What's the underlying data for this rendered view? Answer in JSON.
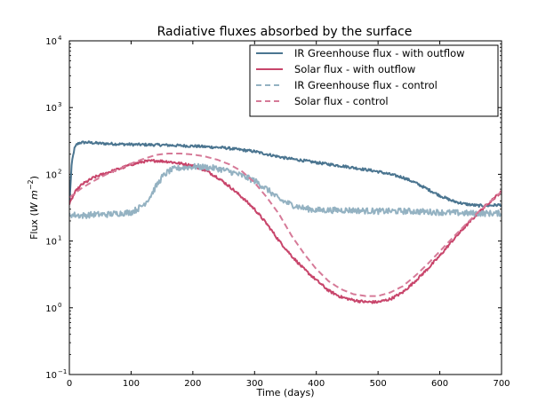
{
  "chart_data": {
    "type": "line",
    "title": "Radiative fluxes absorbed by the surface",
    "xlabel": "Time (days)",
    "ylabel_prefix": "Flux (",
    "ylabel_math": "W m",
    "ylabel_exp": "−2",
    "ylabel_suffix": ")",
    "yscale": "log",
    "xlim": [
      0,
      700
    ],
    "ylim": [
      0.1,
      10000
    ],
    "x_ticks": [
      0,
      100,
      200,
      300,
      400,
      500,
      600,
      700
    ],
    "y_tick_exponents": [
      -1,
      0,
      1,
      2,
      3,
      4
    ],
    "y_tick_base": "10",
    "legend_position": "top-right",
    "series": [
      {
        "name": "IR Greenhouse flux - with outflow",
        "color": "#4b7590",
        "style": "solid",
        "noise": 0.02,
        "x": [
          0,
          4,
          8,
          12,
          16,
          20,
          30,
          50,
          100,
          150,
          200,
          250,
          300,
          320,
          350,
          380,
          400,
          450,
          500,
          540,
          560,
          580,
          600,
          620,
          640,
          660,
          680,
          700
        ],
        "y": [
          35,
          150,
          240,
          280,
          295,
          300,
          300,
          290,
          280,
          275,
          265,
          250,
          220,
          200,
          175,
          160,
          150,
          130,
          110,
          90,
          75,
          60,
          48,
          40,
          36,
          34,
          34,
          35
        ]
      },
      {
        "name": "Solar flux - with outflow",
        "color": "#c8456b",
        "style": "solid",
        "noise": 0.02,
        "x": [
          0,
          5,
          10,
          20,
          40,
          60,
          80,
          100,
          120,
          140,
          160,
          180,
          200,
          220,
          240,
          260,
          280,
          300,
          320,
          340,
          360,
          380,
          400,
          420,
          440,
          460,
          480,
          500,
          520,
          540,
          560,
          580,
          600,
          620,
          640,
          660,
          680,
          700
        ],
        "y": [
          35,
          45,
          55,
          70,
          90,
          105,
          120,
          140,
          155,
          160,
          155,
          145,
          135,
          115,
          90,
          65,
          45,
          30,
          18,
          10,
          6,
          3.8,
          2.6,
          1.8,
          1.45,
          1.3,
          1.22,
          1.22,
          1.35,
          1.7,
          2.5,
          3.8,
          6,
          10,
          16,
          25,
          38,
          55
        ]
      },
      {
        "name": "IR Greenhouse flux - control",
        "color": "#94b2c2",
        "style": "dashed",
        "noise": 0.045,
        "x": [
          0,
          20,
          40,
          60,
          80,
          100,
          110,
          120,
          130,
          140,
          150,
          160,
          170,
          180,
          200,
          220,
          240,
          260,
          280,
          300,
          320,
          340,
          360,
          380,
          400,
          450,
          500,
          550,
          600,
          650,
          700
        ],
        "y": [
          25,
          24,
          25,
          25,
          26,
          27,
          30,
          35,
          45,
          65,
          90,
          110,
          120,
          125,
          130,
          128,
          122,
          110,
          95,
          80,
          60,
          42,
          35,
          31,
          29,
          29,
          28,
          28,
          27,
          26,
          26
        ]
      },
      {
        "name": "Solar flux - control",
        "color": "#d67a98",
        "style": "dashed",
        "noise": 0,
        "x": [
          0,
          20,
          40,
          60,
          80,
          100,
          120,
          140,
          160,
          180,
          200,
          220,
          240,
          260,
          280,
          300,
          320,
          340,
          360,
          380,
          400,
          420,
          440,
          460,
          480,
          500,
          520,
          540,
          560,
          580,
          600,
          620,
          640,
          660,
          680,
          700
        ],
        "y": [
          45,
          62,
          80,
          100,
          120,
          145,
          170,
          195,
          205,
          205,
          198,
          185,
          165,
          140,
          110,
          75,
          45,
          25,
          12,
          6.5,
          3.8,
          2.5,
          1.9,
          1.6,
          1.5,
          1.5,
          1.7,
          2.1,
          3,
          4.5,
          7,
          11,
          17,
          26,
          38,
          55
        ]
      }
    ]
  }
}
